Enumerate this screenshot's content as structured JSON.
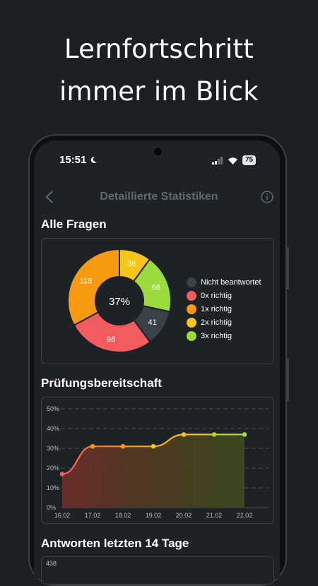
{
  "promo": {
    "line1": "Lernfortschritt",
    "line2": "immer im Blick"
  },
  "status_bar": {
    "time": "15:51",
    "battery": "75"
  },
  "app_bar": {
    "title": "Detaillierte Statistiken"
  },
  "sections": {
    "all_questions": "Alle Fragen",
    "readiness": "Prüfungsbereitschaft",
    "answers": "Antworten letzten 14 Tage"
  },
  "donut": {
    "center_label": "37%",
    "segments": [
      {
        "label": "Nicht beantwortet",
        "value": 41,
        "color": "#3a4249"
      },
      {
        "label": "0x richtig",
        "value": 98,
        "color": "#f25c5f"
      },
      {
        "label": "1x richtig",
        "value": 118,
        "color": "#f79a0f"
      },
      {
        "label": "2x richtig",
        "value": 36,
        "color": "#f5c518"
      },
      {
        "label": "3x richtig",
        "value": 66,
        "color": "#9bdc3c"
      }
    ]
  },
  "chart_data": [
    {
      "type": "line",
      "title": "Prüfungsbereitschaft",
      "x": [
        "16.02",
        "17.02",
        "18.02",
        "19.02",
        "20.02",
        "21.02",
        "22.02"
      ],
      "series": [
        {
          "values": [
            17,
            31,
            31,
            31,
            37,
            37,
            37
          ]
        }
      ],
      "y_ticks": [
        "0%",
        "10%",
        "20%",
        "30%",
        "40%",
        "50%"
      ],
      "ylim": [
        0,
        50
      ],
      "grid": true
    },
    {
      "type": "bar",
      "title": "Antworten letzten 14 Tage",
      "visible_tick": "438"
    }
  ]
}
